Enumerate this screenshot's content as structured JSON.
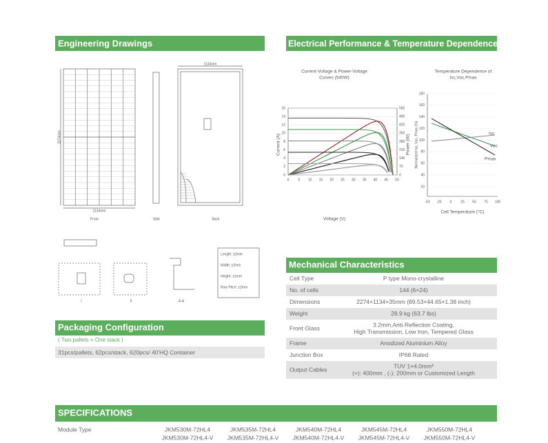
{
  "engineering_drawings": {
    "title": "Engineering Drawings",
    "views": [
      "Front",
      "Side",
      "Back"
    ],
    "dimensions": {
      "top": "1134mm",
      "height": "2274mm",
      "bottom": "1134mm"
    },
    "tolerances": [
      "Length: ±2mm",
      "Width: ±2mm",
      "Height: ±1mm",
      "Row Pitch: ±2mm"
    ],
    "sections": [
      "I",
      "II",
      "A-A"
    ]
  },
  "electrical": {
    "title": "Electrical Performance & Temperature Dependence",
    "iv_chart": {
      "title": [
        "Current-Voltage & Power-Voltage",
        "Curves (540W)"
      ],
      "x_label": "Voltage (V)",
      "y_label": "Current (A)",
      "y2_label": "Power (W)",
      "xticks": [
        0,
        5,
        10,
        15,
        20,
        25,
        30,
        35,
        40,
        45,
        50
      ],
      "yticks": [
        0,
        2,
        4,
        6,
        8,
        10,
        12,
        14,
        16
      ],
      "y2ticks": [
        0,
        70,
        140,
        210,
        280,
        350,
        420,
        490,
        560
      ]
    },
    "temp_chart": {
      "title": [
        "Temperature Dependence of",
        "Isc,Voc,Pmax"
      ],
      "x_label": "Cell Temperature (°C)",
      "y_label": "Normalized Isc, Voc, Pmax (%)",
      "xticks": [
        -50,
        -25,
        0,
        25,
        50,
        75,
        100
      ],
      "yticks": [
        20,
        40,
        60,
        80,
        100,
        120,
        140,
        160,
        180
      ],
      "series_labels": [
        "Isc",
        "Voc",
        "Pmax"
      ]
    }
  },
  "packaging": {
    "title": "Packaging Configuration",
    "note": "( Two pallets = One stack )",
    "detail": "31pcs/pallets, 62pcs/stack, 620pcs/ 40'HQ Container"
  },
  "mechanical": {
    "title": "Mechanical Characteristics",
    "rows": [
      {
        "label": "Cell Type",
        "value": [
          "P type Mono-crystalline"
        ]
      },
      {
        "label": "No. of cells",
        "value": [
          "144 (6×24)"
        ]
      },
      {
        "label": "Dimensions",
        "value": [
          "2274×1134×35mm (89.53×44.65×1.38 inch)"
        ]
      },
      {
        "label": "Weight",
        "value": [
          "28.9 kg (63.7 lbs)"
        ]
      },
      {
        "label": "Front Glass",
        "value": [
          "3.2mm,Anti-Reflection Coating,",
          "High Transmission, Low Iron, Tempered Glass"
        ]
      },
      {
        "label": "Frame",
        "value": [
          "Anodized Aluminium Alloy"
        ]
      },
      {
        "label": "Junction Box",
        "value": [
          "IP68 Rated"
        ]
      },
      {
        "label": "Output Cables",
        "value": [
          "TUV 1×4.0mm²",
          "(+): 400mm , (-): 200mm or Customized Length"
        ]
      }
    ]
  },
  "specifications": {
    "title": "SPECIFICATIONS",
    "label": "Module Type",
    "models": [
      [
        "JKM530M-72HL4",
        "JKM530M-72HL4-V"
      ],
      [
        "JKM535M-72HL4",
        "JKM535M-72HL4-V"
      ],
      [
        "JKM540M-72HL4",
        "JKM540M-72HL4-V"
      ],
      [
        "JKM545M-72HL4",
        "JKM545M-72HL4-V"
      ],
      [
        "JKM550M-72HL4",
        "JKM550M-72HL4-V"
      ]
    ]
  }
}
